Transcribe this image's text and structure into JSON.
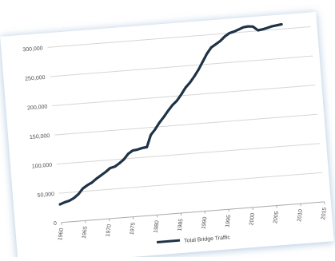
{
  "chart_data": {
    "type": "line",
    "title": "",
    "xlabel": "",
    "ylabel": "",
    "xlim": [
      1960,
      2015
    ],
    "ylim": [
      0,
      300000
    ],
    "grid": true,
    "legend_position": "bottom",
    "x_ticks": [
      {
        "value": 1960,
        "label": "1960"
      },
      {
        "value": 1965,
        "label": "1965"
      },
      {
        "value": 1970,
        "label": "1970"
      },
      {
        "value": 1975,
        "label": "1975"
      },
      {
        "value": 1980,
        "label": "1980"
      },
      {
        "value": 1985,
        "label": "1985"
      },
      {
        "value": 1990,
        "label": "1990"
      },
      {
        "value": 1995,
        "label": "1995"
      },
      {
        "value": 2000,
        "label": "2000"
      },
      {
        "value": 2005,
        "label": "2005"
      },
      {
        "value": 2010,
        "label": "2010"
      },
      {
        "value": 2015,
        "label": "2015"
      }
    ],
    "y_ticks": [
      {
        "value": 0,
        "label": "0"
      },
      {
        "value": 50000,
        "label": "50,000"
      },
      {
        "value": 100000,
        "label": "100,000"
      },
      {
        "value": 150000,
        "label": "150,000"
      },
      {
        "value": 200000,
        "label": "200,000"
      },
      {
        "value": 250000,
        "label": "250,000"
      },
      {
        "value": 300000,
        "label": "300,000"
      }
    ],
    "series": [
      {
        "name": "Total Bridge Traffic",
        "color": "#1f3347",
        "x": [
          1960,
          1961,
          1962,
          1963,
          1964,
          1965,
          1966,
          1967,
          1968,
          1969,
          1970,
          1971,
          1972,
          1973,
          1974,
          1975,
          1976,
          1977,
          1978,
          1979,
          1980,
          1981,
          1982,
          1983,
          1984,
          1985,
          1986,
          1987,
          1988,
          1989,
          1990,
          1991,
          1992,
          1993,
          1994,
          1995,
          1996,
          1997,
          1998,
          1999,
          2000,
          2001,
          2002,
          2003,
          2004,
          2005,
          2006,
          2007,
          2008,
          2009
        ],
        "values": [
          31000,
          34000,
          36000,
          40000,
          46000,
          55000,
          60000,
          64000,
          70000,
          75000,
          80000,
          86000,
          88000,
          93000,
          99000,
          108000,
          113000,
          114000,
          116000,
          117000,
          137000,
          146000,
          157000,
          166000,
          176000,
          185000,
          192000,
          202000,
          213000,
          221000,
          231000,
          242000,
          255000,
          268000,
          278000,
          283000,
          288000,
          295000,
          300000,
          302000,
          305000,
          308000,
          309000,
          308000,
          301000,
          302000,
          304000,
          306000,
          307000,
          308000
        ]
      }
    ]
  }
}
